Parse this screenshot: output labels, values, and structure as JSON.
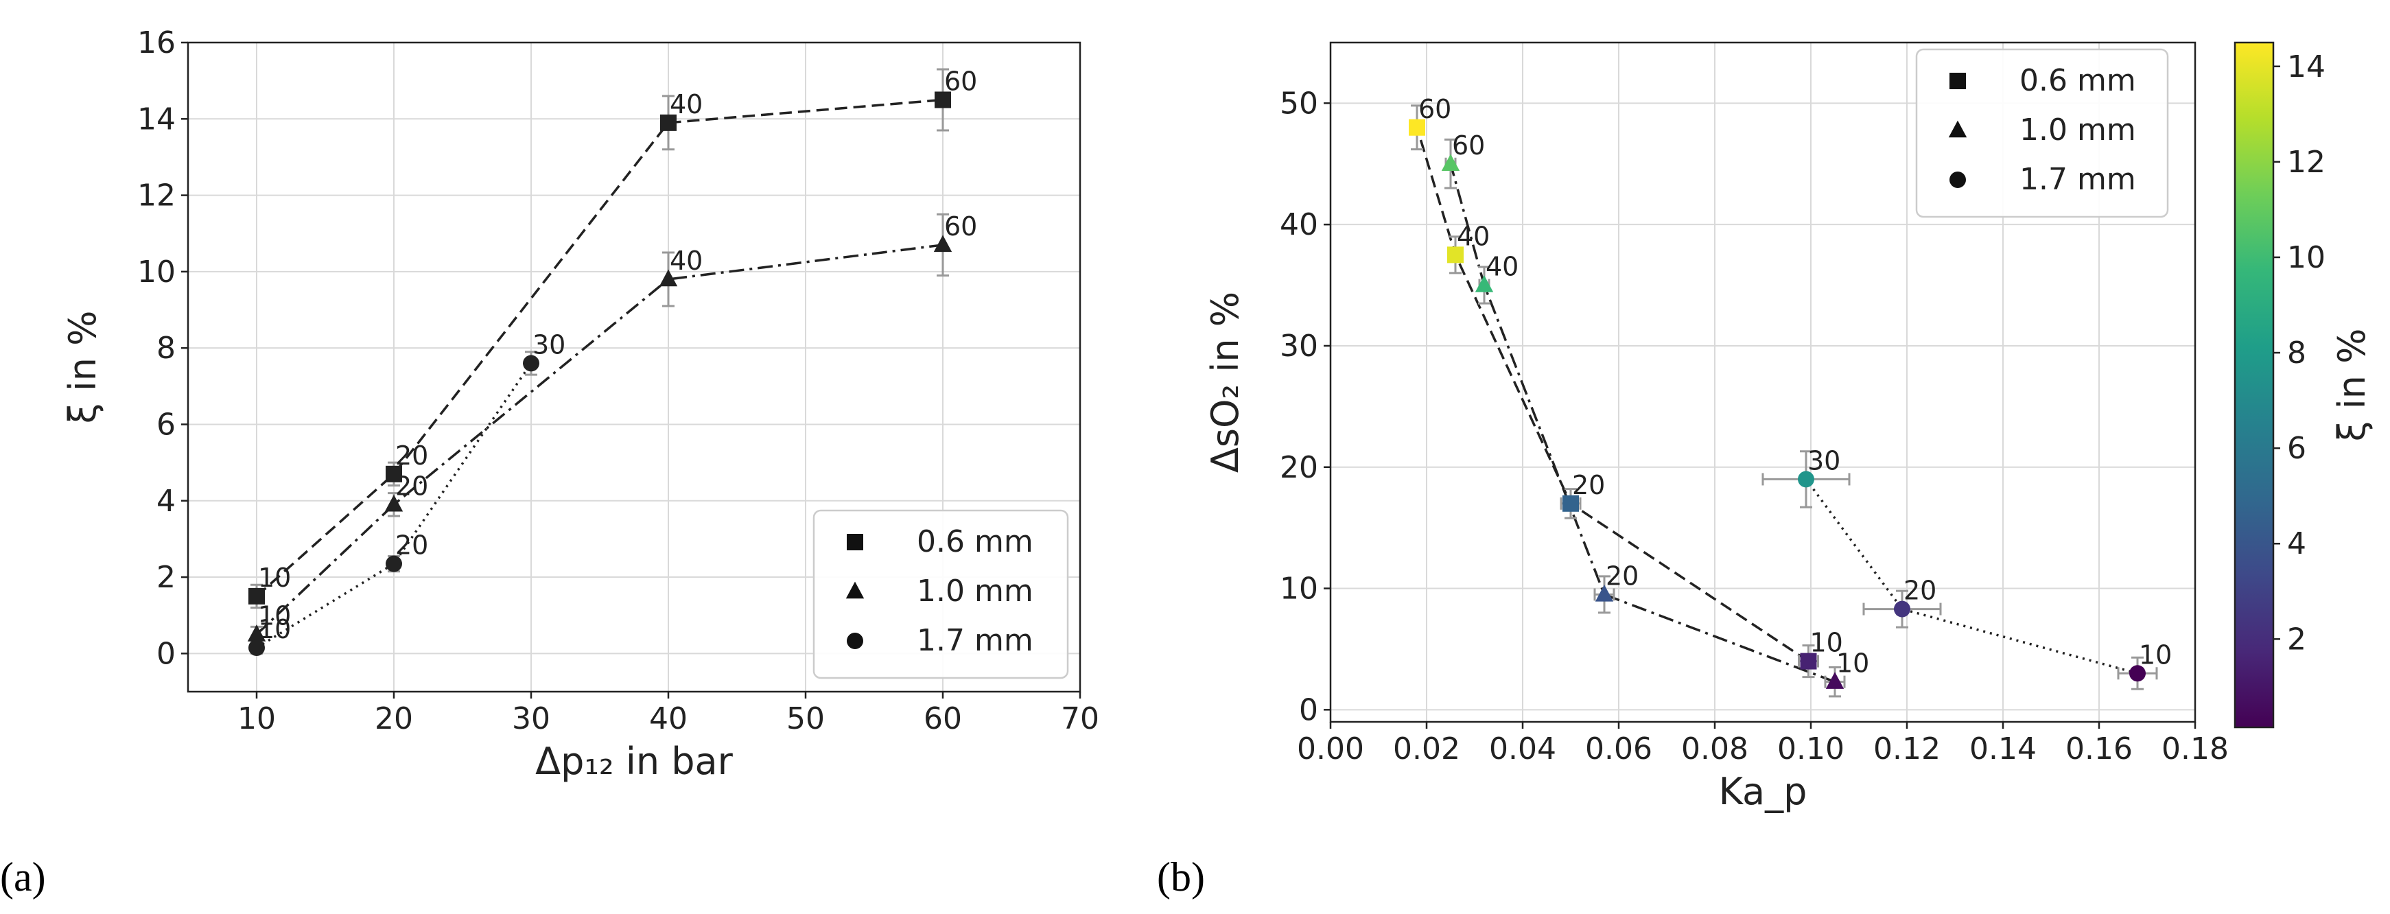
{
  "chart_data": [
    {
      "panel_label": "(a)",
      "type": "line",
      "xlabel": "Δp₁₂ in bar",
      "ylabel": "ξ in %",
      "xlim": [
        5,
        70
      ],
      "ylim": [
        -1,
        16
      ],
      "xticks": [
        10,
        20,
        30,
        40,
        50,
        60,
        70
      ],
      "yticks": [
        0,
        2,
        4,
        6,
        8,
        10,
        12,
        14,
        16
      ],
      "grid": true,
      "legend": {
        "position": "lower-right",
        "entries": [
          "0.6 mm",
          "1.0 mm",
          "1.7 mm"
        ]
      },
      "series": [
        {
          "name": "0.6 mm",
          "marker": "square",
          "linestyle": "dashed",
          "x": [
            10,
            20,
            40,
            60
          ],
          "y": [
            1.5,
            4.7,
            13.9,
            14.5
          ],
          "yerr": [
            0.3,
            0.3,
            0.7,
            0.8
          ],
          "labels": [
            "10",
            "20",
            "40",
            "60"
          ]
        },
        {
          "name": "1.0 mm",
          "marker": "triangle",
          "linestyle": "dashdot",
          "x": [
            10,
            20,
            40,
            60
          ],
          "y": [
            0.5,
            3.9,
            9.8,
            10.7
          ],
          "yerr": [
            0.2,
            0.3,
            0.7,
            0.8
          ],
          "labels": [
            "10",
            "20",
            "40",
            "60"
          ]
        },
        {
          "name": "1.7 mm",
          "marker": "circle",
          "linestyle": "dotted",
          "x": [
            10,
            20,
            30
          ],
          "y": [
            0.15,
            2.35,
            7.6
          ],
          "yerr": [
            0.15,
            0.2,
            0.3
          ],
          "labels": [
            "10",
            "20",
            "30"
          ]
        }
      ]
    },
    {
      "panel_label": "(b)",
      "type": "scatter",
      "xlabel": "Ka_p",
      "ylabel": "ΔsO₂ in %",
      "colorbar_label": "ξ in %",
      "xlim": [
        0,
        0.18
      ],
      "ylim": [
        -1,
        55
      ],
      "xticks": [
        0.0,
        0.02,
        0.04,
        0.06,
        0.08,
        0.1,
        0.12,
        0.14,
        0.16,
        0.18
      ],
      "xtick_labels": [
        "0.00",
        "0.02",
        "0.04",
        "0.06",
        "0.08",
        "0.10",
        "0.12",
        "0.14",
        "0.16",
        "0.18"
      ],
      "yticks": [
        0,
        10,
        20,
        30,
        40,
        50
      ],
      "colorbar_range": [
        0.15,
        14.5
      ],
      "colorbar_ticks": [
        2,
        4,
        6,
        8,
        10,
        12,
        14
      ],
      "grid": true,
      "legend": {
        "position": "top-right",
        "entries": [
          "0.6 mm",
          "1.0 mm",
          "1.7 mm"
        ]
      },
      "series": [
        {
          "name": "0.6 mm",
          "marker": "square",
          "linestyle": "dashed",
          "x": [
            0.0995,
            0.05,
            0.026,
            0.018
          ],
          "y": [
            4.0,
            17.0,
            37.5,
            48.0
          ],
          "xerr": [
            0.002,
            0.002,
            0.001,
            0.001
          ],
          "yerr": [
            1.3,
            1.2,
            1.5,
            1.8
          ],
          "c": [
            1.5,
            4.7,
            13.9,
            14.5
          ],
          "labels": [
            "10",
            "20",
            "40",
            "60"
          ]
        },
        {
          "name": "1.0 mm",
          "marker": "triangle",
          "linestyle": "dashdot",
          "x": [
            0.105,
            0.057,
            0.032,
            0.025
          ],
          "y": [
            2.3,
            9.5,
            35.0,
            45.0
          ],
          "xerr": [
            0.002,
            0.002,
            0.001,
            0.001
          ],
          "yerr": [
            1.2,
            1.5,
            1.5,
            2.0
          ],
          "c": [
            0.5,
            3.9,
            9.8,
            10.7
          ],
          "labels": [
            "10",
            "20",
            "40",
            "60"
          ]
        },
        {
          "name": "1.7 mm",
          "marker": "circle",
          "linestyle": "dotted",
          "x": [
            0.168,
            0.119,
            0.099
          ],
          "y": [
            3.0,
            8.3,
            19.0
          ],
          "xerr": [
            0.004,
            0.008,
            0.009
          ],
          "yerr": [
            1.3,
            1.5,
            2.3
          ],
          "c": [
            0.15,
            2.35,
            7.6
          ],
          "labels": [
            "10",
            "20",
            "30"
          ]
        }
      ]
    }
  ],
  "colors": {
    "line": "#222222",
    "marker_a": "#222222",
    "errorbar": "#999999",
    "grid": "#d9d9d9",
    "viridis": [
      "#440154",
      "#482878",
      "#3e4989",
      "#31688e",
      "#26828e",
      "#1f9e89",
      "#35b779",
      "#6ece58",
      "#b5de2b",
      "#fde725"
    ]
  }
}
